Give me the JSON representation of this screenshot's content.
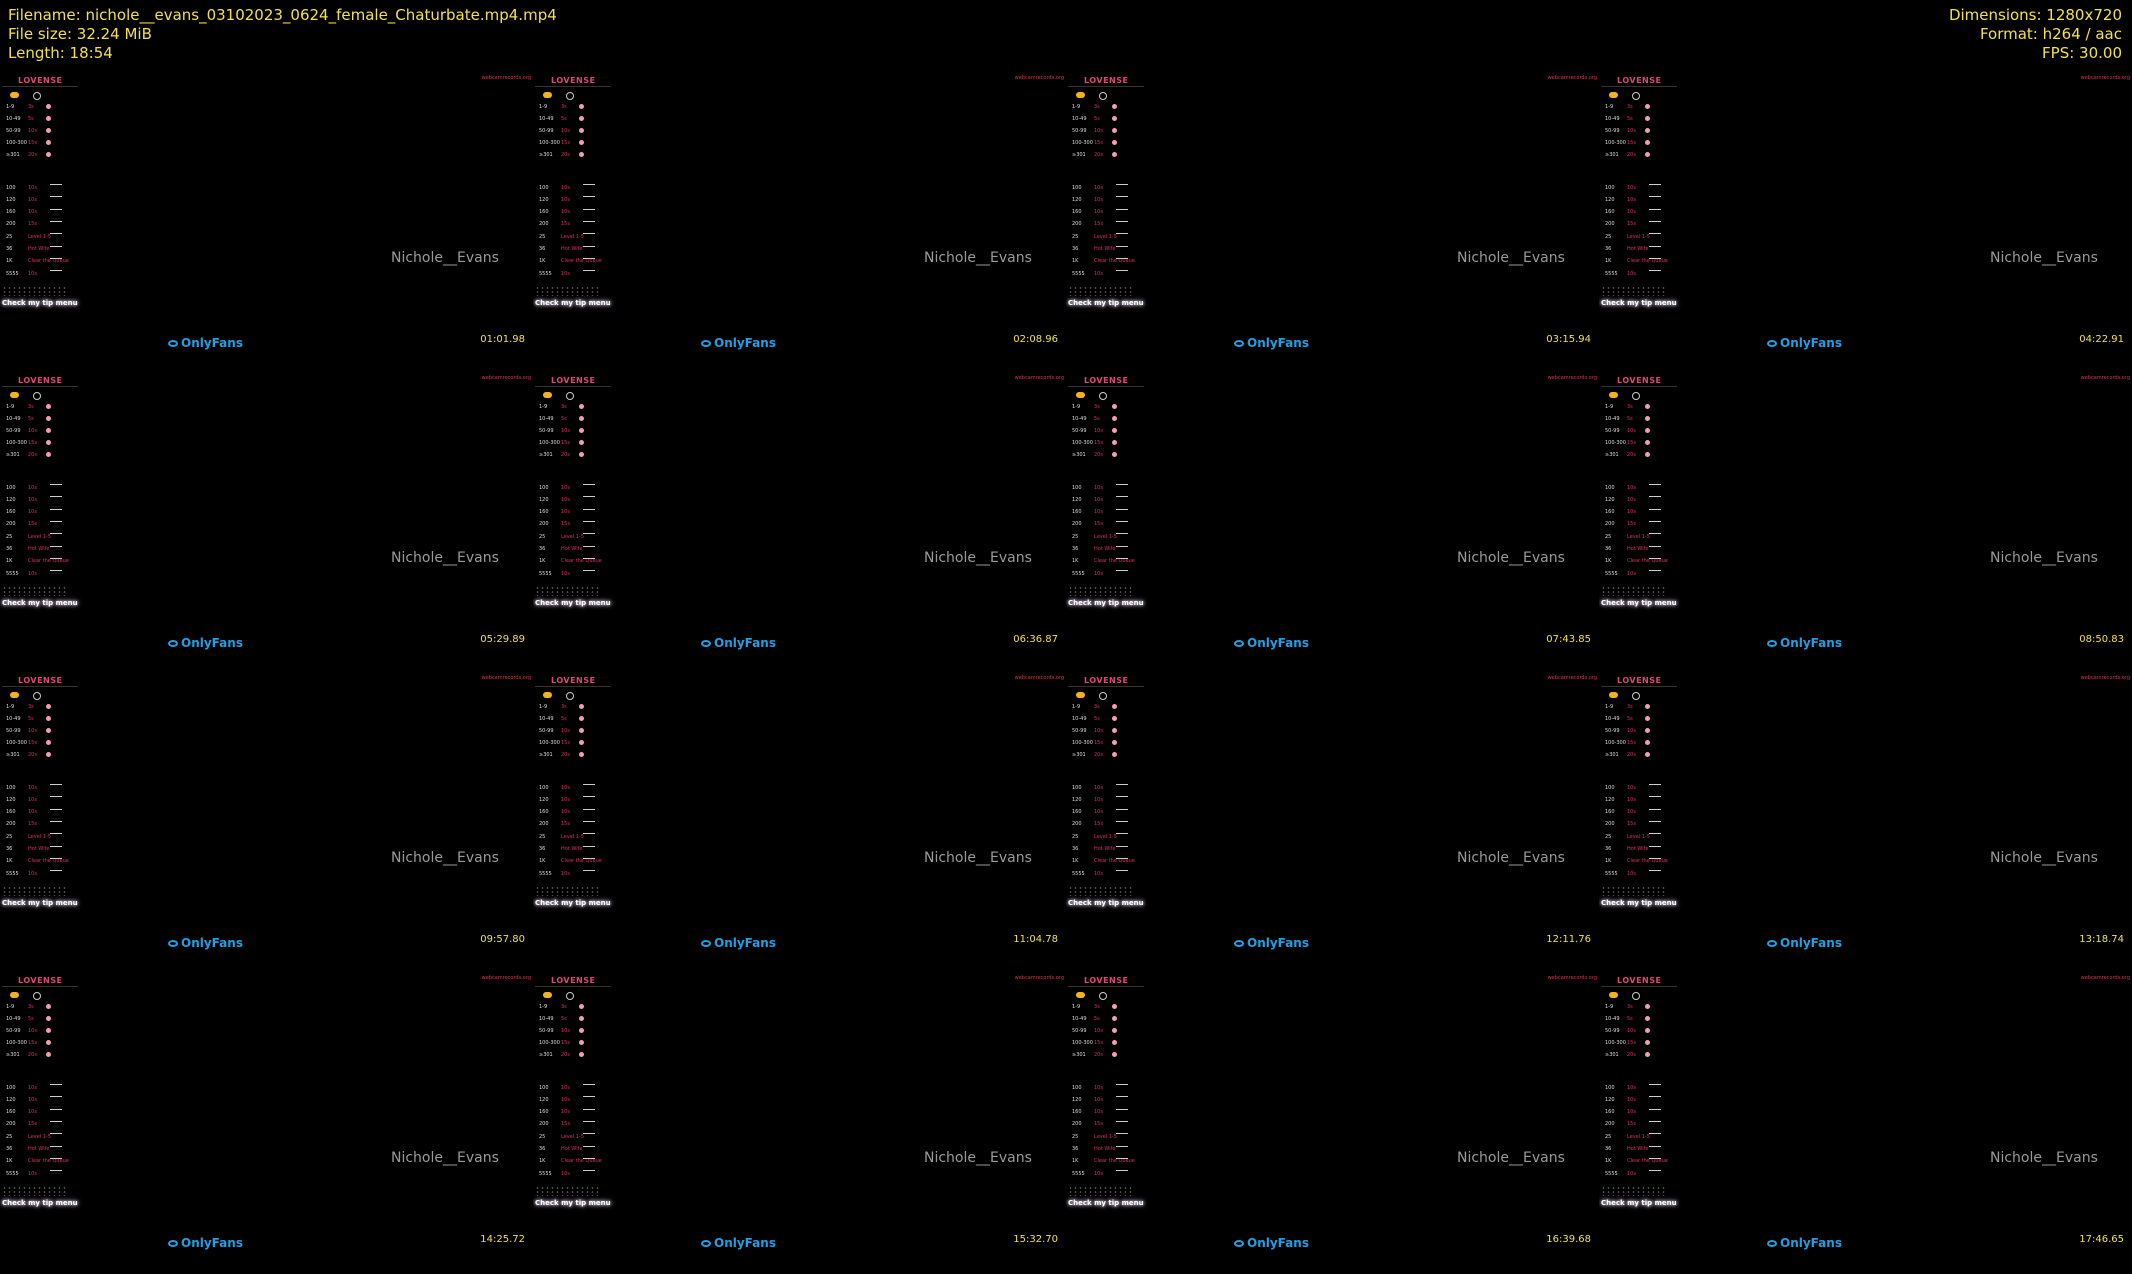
{
  "header": {
    "filename": "Filename: nichole__evans_03102023_0624_female_Chaturbate.mp4.mp4",
    "filesize": "File size: 32.24 MiB",
    "length": "Length: 18:54",
    "dimensions": "Dimensions: 1280x720",
    "format": "Format: h264 / aac",
    "fps": "FPS: 30.00"
  },
  "overlay": {
    "lovense": "LOVENSE",
    "tip_menu": "Check my tip menu",
    "watermark": "webcamrecords.org",
    "performer": "Nichole__Evans",
    "onlyfans": "OnlyFans"
  },
  "tip_levels": [
    {
      "amount": "1-9",
      "level": "3s"
    },
    {
      "amount": "10-49",
      "level": "5s"
    },
    {
      "amount": "50-99",
      "level": "10s"
    },
    {
      "amount": "100-300",
      "level": "15s"
    },
    {
      "amount": "≥301",
      "level": "20s"
    }
  ],
  "tip_specials": [
    {
      "amount": "100",
      "label": "10s"
    },
    {
      "amount": "120",
      "label": "10s"
    },
    {
      "amount": "160",
      "label": "10s"
    },
    {
      "amount": "200",
      "label": "15s"
    },
    {
      "amount": "25",
      "label": "Level 1-5"
    },
    {
      "amount": "36",
      "label": "Hot Wife"
    },
    {
      "amount": "1K",
      "label": "Clear the Queue"
    },
    {
      "amount": "5555",
      "label": "10s"
    }
  ],
  "timestamps": [
    "01:01.98",
    "02:08.96",
    "03:15.94",
    "04:22.91",
    "05:29.89",
    "06:36.87",
    "07:43.85",
    "08:50.83",
    "09:57.80",
    "11:04.78",
    "12:11.76",
    "13:18.74",
    "14:25.72",
    "15:32.70",
    "16:39.68",
    "17:46.65"
  ]
}
